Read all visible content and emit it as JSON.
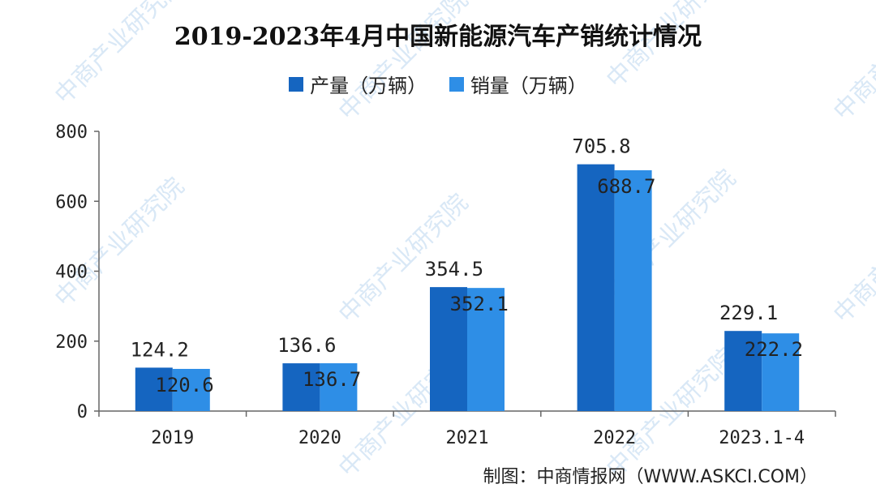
{
  "colors": {
    "production": "#1565c0",
    "sales": "#2e8ee6",
    "axis": "#666666",
    "watermark": "#d9e8f6"
  },
  "watermark_text": "中商产业研究院",
  "credit": "制图：中商情报网（WWW.ASKCI.COM）",
  "chart_data": {
    "type": "bar",
    "title": "2019-2023年4月中国新能源汽车产销统计情况",
    "categories": [
      "2019",
      "2020",
      "2021",
      "2022",
      "2023.1-4"
    ],
    "series": [
      {
        "name": "产量（万辆）",
        "values": [
          124.2,
          136.6,
          354.5,
          705.8,
          229.1
        ],
        "labels": [
          "124.2",
          "136.6",
          "354.5",
          "705.8",
          "229.1"
        ]
      },
      {
        "name": "销量（万辆）",
        "values": [
          120.6,
          136.7,
          352.1,
          688.7,
          222.2
        ],
        "labels": [
          "120.6",
          "136.7",
          "352.1",
          "688.7",
          "222.2"
        ]
      }
    ],
    "ylim": [
      0,
      800
    ],
    "yticks": [
      0,
      200,
      400,
      600,
      800
    ],
    "xlabel": "",
    "ylabel": "",
    "grid": false,
    "legend": "top-center"
  }
}
